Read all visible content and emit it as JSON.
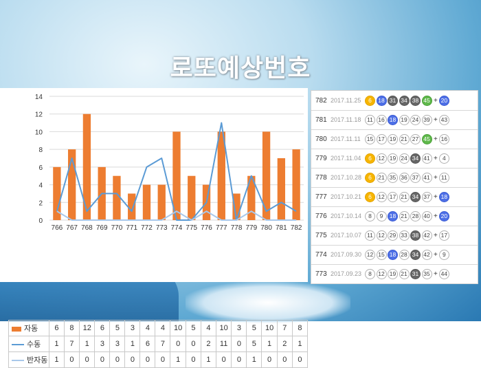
{
  "headline": "로또예상번호",
  "chart_data": {
    "type": "bar",
    "categories": [
      "766",
      "767",
      "768",
      "769",
      "770",
      "771",
      "772",
      "773",
      "774",
      "775",
      "776",
      "777",
      "778",
      "779",
      "780",
      "781",
      "782"
    ],
    "ylim": [
      0,
      14
    ],
    "yticks": [
      "0",
      "2",
      "4",
      "6",
      "8",
      "10",
      "12",
      "14"
    ],
    "grid": true,
    "series": [
      {
        "name": "자동",
        "kind": "bar",
        "color": "#ed7d31",
        "values": [
          6,
          8,
          12,
          6,
          5,
          3,
          4,
          4,
          10,
          5,
          4,
          10,
          3,
          5,
          10,
          7,
          8
        ]
      },
      {
        "name": "수동",
        "kind": "line",
        "color": "#5b9bd5",
        "values": [
          1,
          7,
          1,
          3,
          3,
          1,
          6,
          7,
          0,
          0,
          2,
          11,
          0,
          5,
          1,
          2,
          1
        ]
      },
      {
        "name": "반자동",
        "kind": "line",
        "color": "#a9c8ea",
        "values": [
          1,
          0,
          0,
          0,
          0,
          0,
          0,
          0,
          1,
          0,
          1,
          0,
          0,
          1,
          0,
          0,
          0
        ]
      }
    ]
  },
  "results": [
    {
      "round": "782",
      "date": "2017.11.25",
      "balls": [
        {
          "n": "6",
          "c": "yellow"
        },
        {
          "n": "18",
          "c": "blue"
        },
        {
          "n": "31",
          "c": "gray"
        },
        {
          "n": "34",
          "c": "gray"
        },
        {
          "n": "38",
          "c": "gray"
        },
        {
          "n": "45",
          "c": "green"
        }
      ],
      "bonus": {
        "n": "20",
        "c": "blue"
      }
    },
    {
      "round": "781",
      "date": "2017.11.18",
      "balls": [
        {
          "n": "11",
          "c": "white"
        },
        {
          "n": "16",
          "c": "white"
        },
        {
          "n": "18",
          "c": "blue"
        },
        {
          "n": "19",
          "c": "white"
        },
        {
          "n": "24",
          "c": "white"
        },
        {
          "n": "39",
          "c": "white"
        }
      ],
      "bonus": {
        "n": "43",
        "c": "white"
      }
    },
    {
      "round": "780",
      "date": "2017.11.11",
      "balls": [
        {
          "n": "15",
          "c": "white"
        },
        {
          "n": "17",
          "c": "white"
        },
        {
          "n": "19",
          "c": "white"
        },
        {
          "n": "21",
          "c": "white"
        },
        {
          "n": "27",
          "c": "white"
        },
        {
          "n": "45",
          "c": "green"
        }
      ],
      "bonus": {
        "n": "16",
        "c": "white"
      }
    },
    {
      "round": "779",
      "date": "2017.11.04",
      "balls": [
        {
          "n": "6",
          "c": "yellow"
        },
        {
          "n": "12",
          "c": "white"
        },
        {
          "n": "19",
          "c": "white"
        },
        {
          "n": "24",
          "c": "white"
        },
        {
          "n": "34",
          "c": "gray"
        },
        {
          "n": "41",
          "c": "white"
        }
      ],
      "bonus": {
        "n": "4",
        "c": "white"
      }
    },
    {
      "round": "778",
      "date": "2017.10.28",
      "balls": [
        {
          "n": "6",
          "c": "yellow"
        },
        {
          "n": "21",
          "c": "white"
        },
        {
          "n": "35",
          "c": "white"
        },
        {
          "n": "36",
          "c": "white"
        },
        {
          "n": "37",
          "c": "white"
        },
        {
          "n": "41",
          "c": "white"
        }
      ],
      "bonus": {
        "n": "11",
        "c": "white"
      }
    },
    {
      "round": "777",
      "date": "2017.10.21",
      "balls": [
        {
          "n": "6",
          "c": "yellow"
        },
        {
          "n": "12",
          "c": "white"
        },
        {
          "n": "17",
          "c": "white"
        },
        {
          "n": "21",
          "c": "white"
        },
        {
          "n": "34",
          "c": "gray"
        },
        {
          "n": "37",
          "c": "white"
        }
      ],
      "bonus": {
        "n": "18",
        "c": "blue"
      }
    },
    {
      "round": "776",
      "date": "2017.10.14",
      "balls": [
        {
          "n": "8",
          "c": "white"
        },
        {
          "n": "9",
          "c": "white"
        },
        {
          "n": "18",
          "c": "blue"
        },
        {
          "n": "21",
          "c": "white"
        },
        {
          "n": "28",
          "c": "white"
        },
        {
          "n": "40",
          "c": "white"
        }
      ],
      "bonus": {
        "n": "20",
        "c": "blue"
      }
    },
    {
      "round": "775",
      "date": "2017.10.07",
      "balls": [
        {
          "n": "11",
          "c": "white"
        },
        {
          "n": "12",
          "c": "white"
        },
        {
          "n": "29",
          "c": "white"
        },
        {
          "n": "33",
          "c": "white"
        },
        {
          "n": "38",
          "c": "gray"
        },
        {
          "n": "42",
          "c": "white"
        }
      ],
      "bonus": {
        "n": "17",
        "c": "white"
      }
    },
    {
      "round": "774",
      "date": "2017.09.30",
      "balls": [
        {
          "n": "12",
          "c": "white"
        },
        {
          "n": "15",
          "c": "white"
        },
        {
          "n": "18",
          "c": "blue"
        },
        {
          "n": "28",
          "c": "white"
        },
        {
          "n": "34",
          "c": "gray"
        },
        {
          "n": "42",
          "c": "white"
        }
      ],
      "bonus": {
        "n": "9",
        "c": "white"
      }
    },
    {
      "round": "773",
      "date": "2017.09.23",
      "balls": [
        {
          "n": "8",
          "c": "white"
        },
        {
          "n": "12",
          "c": "white"
        },
        {
          "n": "19",
          "c": "white"
        },
        {
          "n": "21",
          "c": "white"
        },
        {
          "n": "31",
          "c": "gray"
        },
        {
          "n": "35",
          "c": "white"
        }
      ],
      "bonus": {
        "n": "44",
        "c": "white"
      }
    }
  ],
  "plus_sign": "+"
}
